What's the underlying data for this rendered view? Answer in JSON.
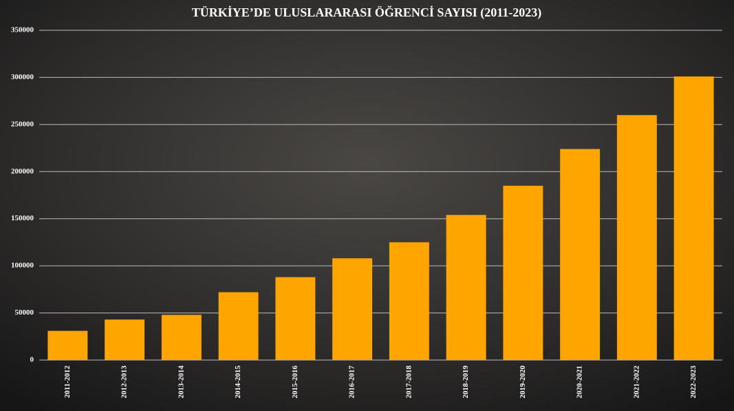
{
  "chart_data": {
    "type": "bar",
    "title": "TÜRKİYE’DE ULUSLARARASI ÖĞRENCİ SAYISI (2011-2023)",
    "categories": [
      "2011-2012",
      "2012-2013",
      "2013-2014",
      "2014-2015",
      "2015-2016",
      "2016-2017",
      "2017-2018",
      "2018-2019",
      "2019-2020",
      "2020-2021",
      "2021-2022",
      "2022-2023"
    ],
    "values": [
      31000,
      43000,
      48000,
      72000,
      88000,
      108000,
      125000,
      154000,
      185000,
      224000,
      260000,
      301000
    ],
    "color": "#ffa500",
    "ylim": [
      0,
      350000
    ],
    "yticks": [
      0,
      50000,
      100000,
      150000,
      200000,
      250000,
      300000,
      350000
    ],
    "grid": true
  }
}
